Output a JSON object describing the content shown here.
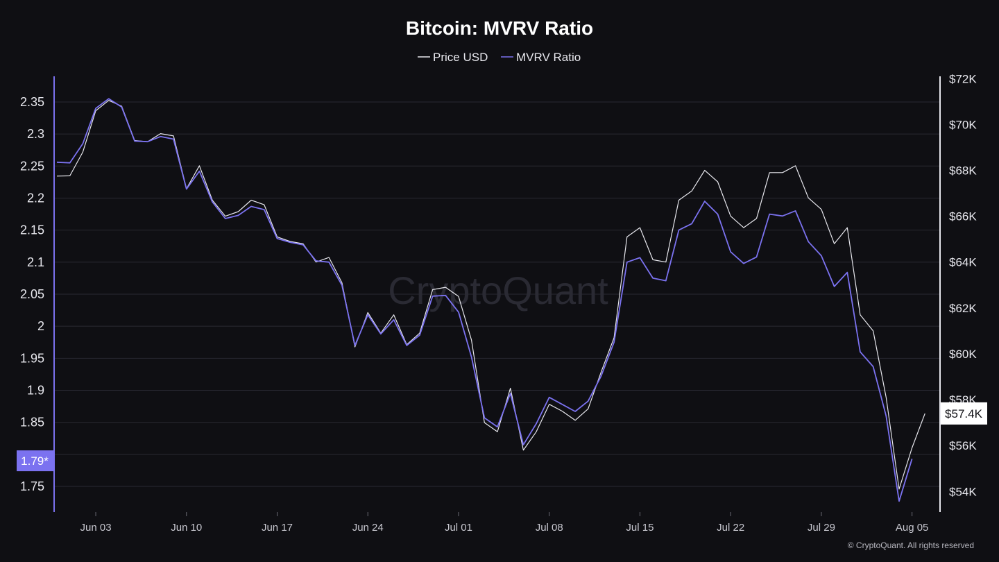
{
  "chart_data": {
    "type": "line",
    "title": "Bitcoin: MVRV Ratio",
    "legend": [
      {
        "name": "Price USD",
        "color": "#e8e8ee"
      },
      {
        "name": "MVRV Ratio",
        "color": "#7b72f0"
      }
    ],
    "x": [
      "2024-05-31",
      "2024-06-01",
      "2024-06-02",
      "2024-06-03",
      "2024-06-04",
      "2024-06-05",
      "2024-06-06",
      "2024-06-07",
      "2024-06-08",
      "2024-06-09",
      "2024-06-10",
      "2024-06-11",
      "2024-06-12",
      "2024-06-13",
      "2024-06-14",
      "2024-06-15",
      "2024-06-16",
      "2024-06-17",
      "2024-06-18",
      "2024-06-19",
      "2024-06-20",
      "2024-06-21",
      "2024-06-22",
      "2024-06-23",
      "2024-06-24",
      "2024-06-25",
      "2024-06-26",
      "2024-06-27",
      "2024-06-28",
      "2024-06-29",
      "2024-06-30",
      "2024-07-01",
      "2024-07-02",
      "2024-07-03",
      "2024-07-04",
      "2024-07-05",
      "2024-07-06",
      "2024-07-07",
      "2024-07-08",
      "2024-07-09",
      "2024-07-10",
      "2024-07-11",
      "2024-07-12",
      "2024-07-13",
      "2024-07-14",
      "2024-07-15",
      "2024-07-16",
      "2024-07-17",
      "2024-07-18",
      "2024-07-19",
      "2024-07-20",
      "2024-07-21",
      "2024-07-22",
      "2024-07-23",
      "2024-07-24",
      "2024-07-25",
      "2024-07-26",
      "2024-07-27",
      "2024-07-28",
      "2024-07-29",
      "2024-07-30",
      "2024-07-31",
      "2024-08-01",
      "2024-08-02",
      "2024-08-03",
      "2024-08-04",
      "2024-08-05",
      "2024-08-06",
      "2024-08-07"
    ],
    "series": [
      {
        "name": "MVRV Ratio",
        "axis": "left",
        "values": [
          2.256,
          2.255,
          2.285,
          2.34,
          2.355,
          2.342,
          2.289,
          2.288,
          2.296,
          2.292,
          2.214,
          2.242,
          2.194,
          2.168,
          2.173,
          2.187,
          2.182,
          2.137,
          2.131,
          2.127,
          2.102,
          2.1,
          2.064,
          1.97,
          2.018,
          1.988,
          2.01,
          1.97,
          1.986,
          2.047,
          2.048,
          2.022,
          1.952,
          1.857,
          1.843,
          1.895,
          1.815,
          1.848,
          1.889,
          1.878,
          1.867,
          1.883,
          1.922,
          1.975,
          2.1,
          2.107,
          2.075,
          2.071,
          2.15,
          2.16,
          2.195,
          2.175,
          2.116,
          2.098,
          2.108,
          2.175,
          2.172,
          2.18,
          2.132,
          2.11,
          2.062,
          2.084,
          1.96,
          1.937,
          1.86,
          1.727,
          1.793,
          null,
          null
        ]
      },
      {
        "name": "Price USD",
        "axis": "right",
        "values": [
          67750,
          67760,
          68800,
          70600,
          71050,
          70800,
          69300,
          69250,
          69600,
          69500,
          67200,
          68200,
          66700,
          66000,
          66200,
          66700,
          66500,
          65100,
          64900,
          64800,
          64000,
          64200,
          63100,
          60300,
          61800,
          60900,
          61700,
          60400,
          60900,
          62800,
          62900,
          62500,
          60600,
          57000,
          56600,
          58500,
          55800,
          56600,
          57800,
          57500,
          57100,
          57600,
          59200,
          60700,
          65100,
          65500,
          64100,
          64000,
          66700,
          67100,
          68000,
          67500,
          66000,
          65500,
          65900,
          67900,
          67900,
          68200,
          66800,
          66300,
          64800,
          65500,
          61700,
          61000,
          58100,
          54100,
          55900,
          57400,
          null
        ]
      }
    ],
    "left_axis": {
      "ticks": [
        "1.75",
        "1.8",
        "1.85",
        "1.9",
        "1.95",
        "2",
        "2.05",
        "2.1",
        "2.15",
        "2.2",
        "2.25",
        "2.3",
        "2.35"
      ],
      "ylim": [
        1.71,
        2.39
      ],
      "marker": "1.79*",
      "marker_color": "#7b72f0"
    },
    "right_axis": {
      "ticks": [
        "$54K",
        "$56K",
        "$58K",
        "$60K",
        "$62K",
        "$64K",
        "$66K",
        "$68K",
        "$70K",
        "$72K"
      ],
      "ylim": [
        53100,
        72100
      ],
      "marker": "$57.4K"
    },
    "x_ticks": [
      {
        "date": "2024-06-03",
        "label": "Jun 03"
      },
      {
        "date": "2024-06-10",
        "label": "Jun 10"
      },
      {
        "date": "2024-06-17",
        "label": "Jun 17"
      },
      {
        "date": "2024-06-24",
        "label": "Jun 24"
      },
      {
        "date": "2024-07-01",
        "label": "Jul 01"
      },
      {
        "date": "2024-07-08",
        "label": "Jul 08"
      },
      {
        "date": "2024-07-15",
        "label": "Jul 15"
      },
      {
        "date": "2024-07-22",
        "label": "Jul 22"
      },
      {
        "date": "2024-07-29",
        "label": "Jul 29"
      },
      {
        "date": "2024-08-05",
        "label": "Aug 05"
      }
    ],
    "grid": true,
    "legend_position": "top-center"
  },
  "watermark": "CryptoQuant",
  "copyright": "© CryptoQuant. All rights reserved"
}
